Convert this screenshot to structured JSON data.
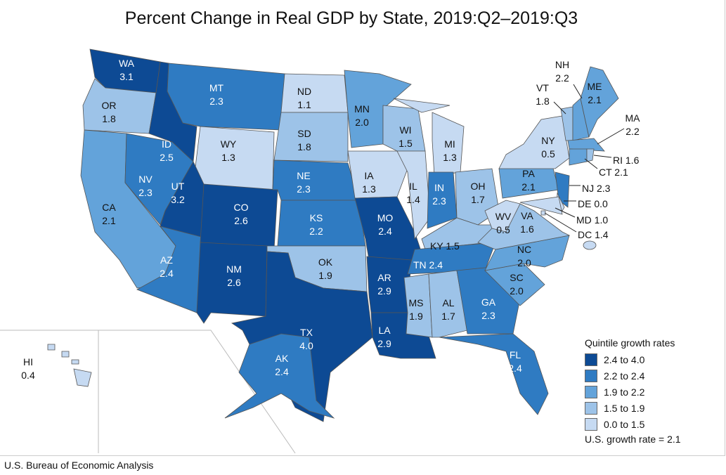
{
  "title": "Percent Change in Real GDP by State, 2019:Q2–2019:Q3",
  "source": "U.S. Bureau of Economic Analysis",
  "legend": {
    "title": "Quintile growth rates",
    "items": [
      {
        "label": "2.4 to 4.0",
        "color": "#0d4a94"
      },
      {
        "label": "2.2 to 2.4",
        "color": "#2f7bc2"
      },
      {
        "label": "1.9 to 2.2",
        "color": "#63a3da"
      },
      {
        "label": "1.5 to 1.9",
        "color": "#9dc3e8"
      },
      {
        "label": "0.0 to 1.5",
        "color": "#c6daf2"
      }
    ],
    "us_rate": "U.S. growth rate = 2.1"
  },
  "states": [
    {
      "code": "WA",
      "value": "3.1",
      "q": 0
    },
    {
      "code": "OR",
      "value": "1.8",
      "q": 3
    },
    {
      "code": "CA",
      "value": "2.1",
      "q": 2
    },
    {
      "code": "ID",
      "value": "2.5",
      "q": 0
    },
    {
      "code": "NV",
      "value": "2.3",
      "q": 1
    },
    {
      "code": "MT",
      "value": "2.3",
      "q": 1
    },
    {
      "code": "WY",
      "value": "1.3",
      "q": 4
    },
    {
      "code": "UT",
      "value": "3.2",
      "q": 0
    },
    {
      "code": "AZ",
      "value": "2.4",
      "q": 1
    },
    {
      "code": "CO",
      "value": "2.6",
      "q": 0
    },
    {
      "code": "NM",
      "value": "2.6",
      "q": 0
    },
    {
      "code": "ND",
      "value": "1.1",
      "q": 4
    },
    {
      "code": "SD",
      "value": "1.8",
      "q": 3
    },
    {
      "code": "NE",
      "value": "2.3",
      "q": 1
    },
    {
      "code": "KS",
      "value": "2.2",
      "q": 1
    },
    {
      "code": "OK",
      "value": "1.9",
      "q": 3
    },
    {
      "code": "TX",
      "value": "4.0",
      "q": 0
    },
    {
      "code": "MN",
      "value": "2.0",
      "q": 2
    },
    {
      "code": "IA",
      "value": "1.3",
      "q": 4
    },
    {
      "code": "MO",
      "value": "2.4",
      "q": 0
    },
    {
      "code": "AR",
      "value": "2.9",
      "q": 0
    },
    {
      "code": "LA",
      "value": "2.9",
      "q": 0
    },
    {
      "code": "WI",
      "value": "1.5",
      "q": 3
    },
    {
      "code": "IL",
      "value": "1.4",
      "q": 4
    },
    {
      "code": "MI",
      "value": "1.3",
      "q": 4
    },
    {
      "code": "IN",
      "value": "2.3",
      "q": 1
    },
    {
      "code": "OH",
      "value": "1.7",
      "q": 3
    },
    {
      "code": "KY",
      "value": "1.5",
      "q": 3
    },
    {
      "code": "TN",
      "value": "2.4",
      "q": 1
    },
    {
      "code": "MS",
      "value": "1.9",
      "q": 3
    },
    {
      "code": "AL",
      "value": "1.7",
      "q": 3
    },
    {
      "code": "GA",
      "value": "2.3",
      "q": 1
    },
    {
      "code": "FL",
      "value": "2.4",
      "q": 1
    },
    {
      "code": "SC",
      "value": "2.0",
      "q": 2
    },
    {
      "code": "NC",
      "value": "2.0",
      "q": 2
    },
    {
      "code": "VA",
      "value": "1.6",
      "q": 3
    },
    {
      "code": "WV",
      "value": "0.5",
      "q": 4
    },
    {
      "code": "PA",
      "value": "2.1",
      "q": 2
    },
    {
      "code": "NY",
      "value": "0.5",
      "q": 4
    },
    {
      "code": "NJ",
      "value": "2.3",
      "q": 1
    },
    {
      "code": "DE",
      "value": "0.0",
      "q": 4
    },
    {
      "code": "MD",
      "value": "1.0",
      "q": 4
    },
    {
      "code": "DC",
      "value": "1.4",
      "q": 4
    },
    {
      "code": "VT",
      "value": "1.8",
      "q": 3
    },
    {
      "code": "NH",
      "value": "2.2",
      "q": 2
    },
    {
      "code": "ME",
      "value": "2.1",
      "q": 2
    },
    {
      "code": "MA",
      "value": "2.2",
      "q": 2
    },
    {
      "code": "CT",
      "value": "2.1",
      "q": 2
    },
    {
      "code": "RI",
      "value": "1.6",
      "q": 3
    },
    {
      "code": "AK",
      "value": "2.4",
      "q": 1
    },
    {
      "code": "HI",
      "value": "0.4",
      "q": 4
    }
  ]
}
